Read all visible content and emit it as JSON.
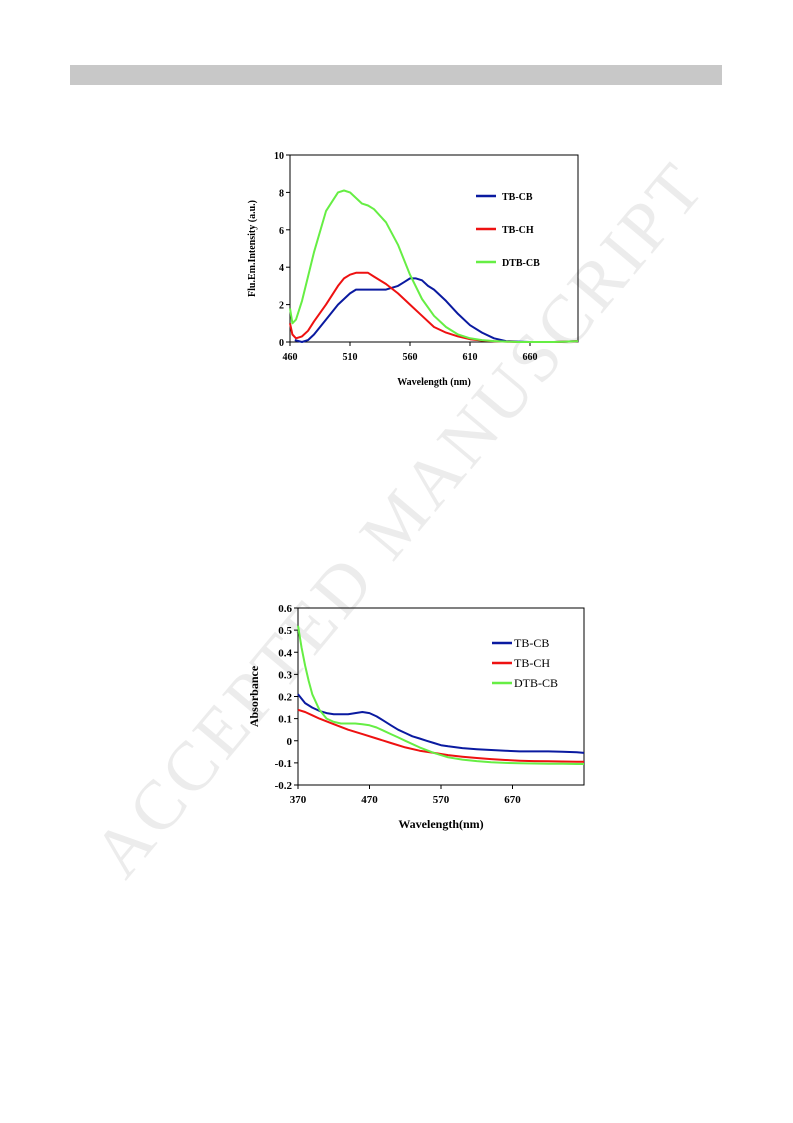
{
  "watermark": "ACCEPTED MANUSCRIPT",
  "colors": {
    "tb_cb": "#0a1aa0",
    "tb_ch": "#ee1111",
    "dtb_cb": "#66ee44",
    "bar": "#c8c8c8"
  },
  "chart_data": [
    {
      "type": "line",
      "title": "",
      "xlabel": "Wavelength (nm)",
      "ylabel": "Flu.Em.Intensity (a.u.)",
      "xlim": [
        460,
        700
      ],
      "ylim": [
        0,
        10
      ],
      "xticks": [
        460,
        510,
        560,
        610,
        660
      ],
      "yticks": [
        0,
        2,
        4,
        6,
        8,
        10
      ],
      "grid": false,
      "legend_position": "right",
      "series": [
        {
          "name": "TB-CB",
          "color": "#0a1aa0",
          "x": [
            464,
            470,
            475,
            480,
            490,
            500,
            510,
            515,
            520,
            530,
            540,
            550,
            555,
            560,
            565,
            570,
            575,
            580,
            590,
            600,
            610,
            620,
            630,
            640,
            650,
            660,
            670,
            680,
            690,
            700
          ],
          "y": [
            0.1,
            0.0,
            0.1,
            0.4,
            1.2,
            2.0,
            2.6,
            2.8,
            2.8,
            2.8,
            2.8,
            3.0,
            3.2,
            3.4,
            3.4,
            3.3,
            3.0,
            2.8,
            2.2,
            1.5,
            0.9,
            0.5,
            0.2,
            0.05,
            0.02,
            0.0,
            0.0,
            0.0,
            0.02,
            0.05
          ]
        },
        {
          "name": "TB-CH",
          "color": "#ee1111",
          "x": [
            460,
            462,
            465,
            470,
            475,
            480,
            490,
            500,
            505,
            510,
            515,
            520,
            525,
            530,
            540,
            550,
            560,
            570,
            580,
            590,
            600,
            610,
            620,
            630,
            640,
            650,
            660,
            670,
            680,
            690,
            700
          ],
          "y": [
            1.0,
            0.4,
            0.2,
            0.3,
            0.6,
            1.1,
            2.0,
            3.0,
            3.4,
            3.6,
            3.7,
            3.7,
            3.7,
            3.5,
            3.1,
            2.6,
            2.0,
            1.4,
            0.8,
            0.5,
            0.3,
            0.15,
            0.08,
            0.04,
            0.02,
            0.0,
            0.0,
            0.0,
            0.0,
            0.02,
            0.05
          ]
        },
        {
          "name": "DTB-CB",
          "color": "#66ee44",
          "x": [
            460,
            462,
            465,
            470,
            475,
            480,
            490,
            500,
            505,
            510,
            515,
            520,
            525,
            530,
            540,
            550,
            560,
            570,
            580,
            590,
            600,
            610,
            620,
            630,
            640,
            650,
            660,
            670,
            680,
            690,
            700
          ],
          "y": [
            1.8,
            1.0,
            1.2,
            2.2,
            3.5,
            4.8,
            7.0,
            8.0,
            8.1,
            8.0,
            7.7,
            7.4,
            7.3,
            7.1,
            6.4,
            5.2,
            3.6,
            2.3,
            1.4,
            0.8,
            0.4,
            0.2,
            0.1,
            0.05,
            0.02,
            0.0,
            0.0,
            0.0,
            0.0,
            0.02,
            0.05
          ]
        }
      ]
    },
    {
      "type": "line",
      "title": "",
      "xlabel": "Wavelength(nm)",
      "ylabel": "Absorbance",
      "xlim": [
        370,
        770
      ],
      "ylim": [
        -0.2,
        0.6
      ],
      "xticks": [
        370,
        470,
        570,
        670
      ],
      "yticks": [
        -0.2,
        -0.1,
        0,
        0.1,
        0.2,
        0.3,
        0.4,
        0.5,
        0.6
      ],
      "grid": false,
      "legend_position": "top-right",
      "series": [
        {
          "name": "TB-CB",
          "color": "#0a1aa0",
          "x": [
            370,
            380,
            390,
            400,
            410,
            420,
            430,
            440,
            450,
            460,
            470,
            480,
            490,
            500,
            510,
            520,
            530,
            540,
            550,
            560,
            570,
            580,
            600,
            620,
            640,
            660,
            680,
            700,
            720,
            740,
            760,
            770
          ],
          "y": [
            0.21,
            0.17,
            0.15,
            0.135,
            0.125,
            0.12,
            0.12,
            0.12,
            0.125,
            0.13,
            0.125,
            0.11,
            0.09,
            0.07,
            0.05,
            0.035,
            0.02,
            0.01,
            0.0,
            -0.01,
            -0.02,
            -0.025,
            -0.033,
            -0.038,
            -0.042,
            -0.045,
            -0.048,
            -0.048,
            -0.048,
            -0.05,
            -0.052,
            -0.055
          ]
        },
        {
          "name": "TB-CH",
          "color": "#ee1111",
          "x": [
            370,
            380,
            390,
            400,
            420,
            440,
            460,
            480,
            500,
            520,
            540,
            560,
            580,
            600,
            620,
            640,
            660,
            680,
            700,
            720,
            740,
            760,
            770
          ],
          "y": [
            0.14,
            0.13,
            0.115,
            0.1,
            0.075,
            0.05,
            0.03,
            0.01,
            -0.01,
            -0.03,
            -0.045,
            -0.055,
            -0.065,
            -0.072,
            -0.078,
            -0.083,
            -0.087,
            -0.09,
            -0.092,
            -0.093,
            -0.094,
            -0.095,
            -0.095
          ]
        },
        {
          "name": "DTB-CB",
          "color": "#66ee44",
          "x": [
            370,
            375,
            380,
            385,
            390,
            400,
            410,
            420,
            430,
            440,
            450,
            460,
            470,
            480,
            490,
            500,
            510,
            520,
            540,
            560,
            580,
            600,
            620,
            640,
            660,
            680,
            700,
            720,
            740,
            760,
            770
          ],
          "y": [
            0.52,
            0.42,
            0.34,
            0.27,
            0.21,
            0.14,
            0.1,
            0.085,
            0.078,
            0.078,
            0.078,
            0.075,
            0.07,
            0.06,
            0.045,
            0.03,
            0.015,
            0.0,
            -0.03,
            -0.055,
            -0.075,
            -0.085,
            -0.092,
            -0.097,
            -0.1,
            -0.102,
            -0.103,
            -0.104,
            -0.104,
            -0.105,
            -0.105
          ]
        }
      ]
    }
  ]
}
